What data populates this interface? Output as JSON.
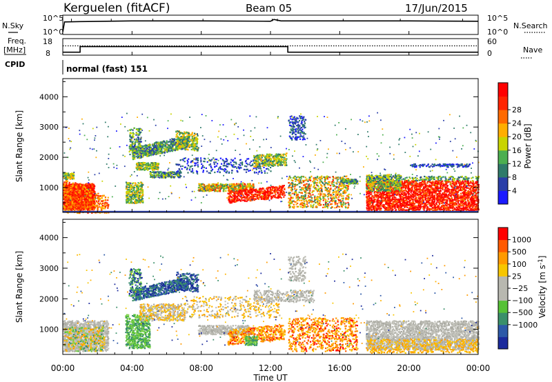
{
  "header": {
    "station": "Kerguelen (fitACF)",
    "beam": "Beam 05",
    "date": "17/Jun/2015"
  },
  "panels": {
    "nsky_label": "N.Sky",
    "nsearch_label": "N.Search",
    "freq_label_1": "Freq.",
    "freq_label_2": "[MHz]",
    "nave_label": "Nave",
    "cpid_label": "CPID",
    "cpid_value": "normal (fast) 151"
  },
  "chart_data": [
    {
      "type": "line",
      "name": "noise-panel",
      "yticks_left": [
        "10^5",
        "10^0"
      ],
      "yticks_right": [
        "10^5",
        "10^0"
      ],
      "series": [
        {
          "name": "N.Sky",
          "x_hours": [
            0,
            0.1,
            1,
            4,
            8,
            12,
            12.2,
            12.6,
            16,
            20,
            23.9,
            24
          ],
          "values_log": [
            0.5,
            3.3,
            3.4,
            3.6,
            3.6,
            3.5,
            4.0,
            3.6,
            3.6,
            3.6,
            3.5,
            3.5
          ]
        }
      ]
    },
    {
      "type": "line",
      "name": "freq-nave-panel",
      "yticks_left": [
        "18",
        "8"
      ],
      "yticks_right": [
        "60",
        "0"
      ],
      "series": [
        {
          "name": "Freq.",
          "x_hours": [
            0,
            1,
            1,
            13,
            13,
            24
          ],
          "values": [
            9.5,
            9.5,
            13.2,
            13.2,
            9.5,
            9.5
          ]
        },
        {
          "name": "Nave",
          "x_hours": [
            0,
            24
          ],
          "values": [
            34,
            34
          ]
        }
      ]
    },
    {
      "type": "heatmap",
      "name": "power",
      "ylabel": "Slant Range [km]",
      "yticks": [
        "1000",
        "2000",
        "3000",
        "4000"
      ],
      "y_values": [
        1000,
        2000,
        3000,
        4000
      ],
      "ylim": [
        180,
        4600
      ],
      "colorbar_label": "Power [dB]",
      "colorbar_ticks": [
        "4",
        "8",
        "12",
        "16",
        "20",
        "24",
        "28"
      ],
      "colorbar_colors": [
        "#1a1aff",
        "#2a3ea8",
        "#2f7a6a",
        "#4caf50",
        "#c8d400",
        "#ffae00",
        "#ff6a00",
        "#ff2400",
        "#ff0000"
      ]
    },
    {
      "type": "heatmap",
      "name": "velocity",
      "ylabel": "Slant Range [km]",
      "yticks": [
        "1000",
        "2000",
        "3000",
        "4000"
      ],
      "y_values": [
        1000,
        2000,
        3000,
        4000
      ],
      "ylim": [
        180,
        4600
      ],
      "colorbar_label": "Velocity [m s",
      "colorbar_label_sup": "-1",
      "colorbar_label_end": "]",
      "colorbar_ticks": [
        "1000",
        "500",
        "100",
        "25",
        "−25",
        "−100",
        "−500",
        "−1000"
      ],
      "colorbar_colors": [
        "#1b2a9c",
        "#2d59a8",
        "#3a8f6a",
        "#56c136",
        "#b8b8b0",
        "#b8b8b0",
        "#f7c600",
        "#ff9a00",
        "#ff5a00",
        "#ff0000"
      ]
    }
  ],
  "xaxis": {
    "ticks": [
      "00:00",
      "04:00",
      "08:00",
      "12:00",
      "16:00",
      "20:00",
      "00:00"
    ],
    "label": "Time UT"
  }
}
